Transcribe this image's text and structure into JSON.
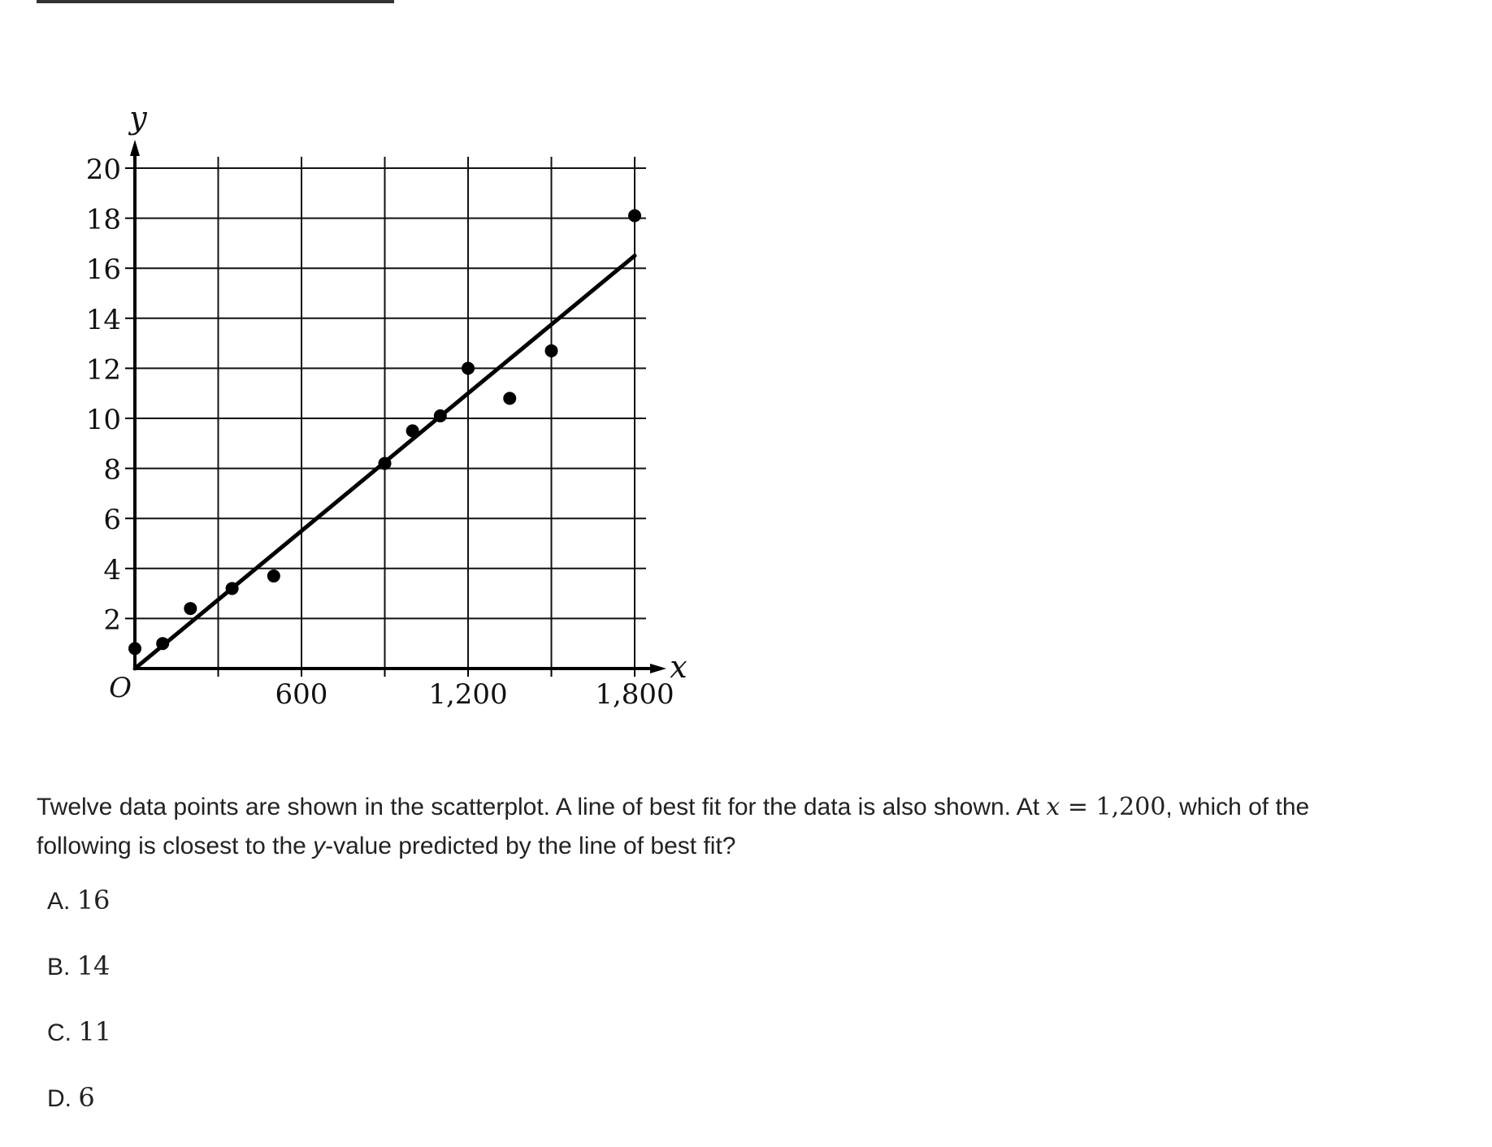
{
  "chart_data": {
    "type": "scatter",
    "xlabel": "x",
    "ylabel": "y",
    "origin_label": "O",
    "xlim": [
      0,
      1800
    ],
    "ylim": [
      0,
      20
    ],
    "x_ticks": [
      0,
      300,
      600,
      900,
      1200,
      1500,
      1800
    ],
    "x_tick_labels": [
      {
        "value": 600,
        "label": "600"
      },
      {
        "value": 1200,
        "label": "1,200"
      },
      {
        "value": 1800,
        "label": "1,800"
      }
    ],
    "y_tick_labels": [
      {
        "value": 2,
        "label": "2"
      },
      {
        "value": 4,
        "label": "4"
      },
      {
        "value": 6,
        "label": "6"
      },
      {
        "value": 8,
        "label": "8"
      },
      {
        "value": 10,
        "label": "10"
      },
      {
        "value": 12,
        "label": "12"
      },
      {
        "value": 14,
        "label": "14"
      },
      {
        "value": 16,
        "label": "16"
      },
      {
        "value": 18,
        "label": "18"
      },
      {
        "value": 20,
        "label": "20"
      }
    ],
    "grid": true,
    "points": [
      {
        "x": 0,
        "y": 0.8
      },
      {
        "x": 100,
        "y": 1.0
      },
      {
        "x": 200,
        "y": 2.4
      },
      {
        "x": 350,
        "y": 3.2
      },
      {
        "x": 500,
        "y": 3.7
      },
      {
        "x": 900,
        "y": 8.2
      },
      {
        "x": 1000,
        "y": 9.5
      },
      {
        "x": 1100,
        "y": 10.1
      },
      {
        "x": 1200,
        "y": 12.0
      },
      {
        "x": 1350,
        "y": 10.8
      },
      {
        "x": 1500,
        "y": 12.7
      },
      {
        "x": 1800,
        "y": 18.1
      }
    ],
    "best_fit_line": {
      "from": {
        "x": 0,
        "y": 0
      },
      "to": {
        "x": 1800,
        "y": 16.5
      }
    }
  },
  "question": {
    "part1": "Twelve data points are shown in the scatterplot. A line of best fit for the data is also shown. At ",
    "var_x": "x",
    "equals": " = ",
    "x_value": "1,200",
    "part2": ", which of the",
    "part3": "following is closest to the ",
    "var_y": "y",
    "part4": "-value predicted by the line of best fit?"
  },
  "choices": [
    {
      "letter": "A. ",
      "value": "16"
    },
    {
      "letter": "B. ",
      "value": "14"
    },
    {
      "letter": "C. ",
      "value": "11"
    },
    {
      "letter": "D. ",
      "value": "6"
    }
  ]
}
